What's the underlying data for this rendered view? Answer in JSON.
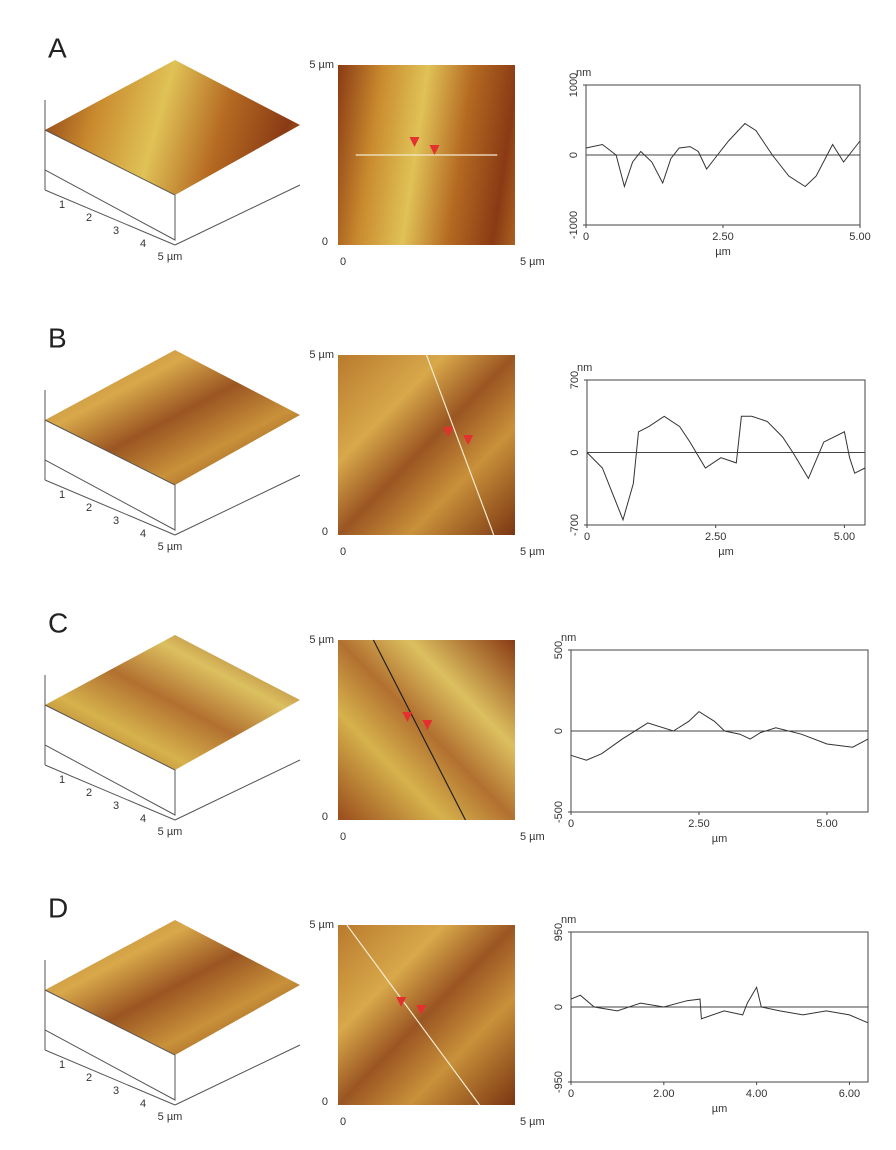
{
  "panels": [
    {
      "label": "A",
      "surface_ticks": [
        "1",
        "2",
        "3",
        "4",
        "5 µm"
      ],
      "image_labels": {
        "y_top": "5 µm",
        "y_bottom": "0",
        "x_left": "0",
        "x_right": "5 µm"
      }
    },
    {
      "label": "B",
      "surface_ticks": [
        "1",
        "2",
        "3",
        "4",
        "5 µm"
      ],
      "image_labels": {
        "y_top": "5 µm",
        "y_bottom": "0",
        "x_left": "0",
        "x_right": "5 µm"
      }
    },
    {
      "label": "C",
      "surface_ticks": [
        "1",
        "2",
        "3",
        "4",
        "5 µm"
      ],
      "image_labels": {
        "y_top": "5 µm",
        "y_bottom": "0",
        "x_left": "0",
        "x_right": "5 µm"
      }
    },
    {
      "label": "D",
      "surface_ticks": [
        "1",
        "2",
        "3",
        "4",
        "5 µm"
      ],
      "image_labels": {
        "y_top": "5 µm",
        "y_bottom": "0",
        "x_left": "0",
        "x_right": "5 µm"
      }
    }
  ],
  "chart_data": [
    {
      "type": "line",
      "y_label": "nm",
      "x_label": "µm",
      "color": "#333",
      "xlim": [
        0,
        5
      ],
      "ylim": [
        -1000,
        1000
      ],
      "xticks": [
        0,
        {
          "value": 2.5,
          "label": "2.50"
        },
        {
          "value": 5,
          "label": "5.00"
        }
      ],
      "yticks": [
        -1000,
        0,
        1000
      ],
      "x": [
        0,
        0.3,
        0.55,
        0.7,
        0.85,
        1.0,
        1.2,
        1.4,
        1.55,
        1.7,
        1.9,
        2.05,
        2.2,
        2.4,
        2.6,
        2.9,
        3.1,
        3.4,
        3.7,
        4.0,
        4.2,
        4.5,
        4.7,
        4.9,
        5.0
      ],
      "values": [
        100,
        150,
        0,
        -450,
        -100,
        50,
        -100,
        -400,
        -50,
        100,
        120,
        50,
        -200,
        0,
        200,
        450,
        350,
        0,
        -300,
        -450,
        -300,
        150,
        -100,
        100,
        200
      ]
    },
    {
      "type": "line",
      "y_label": "nm",
      "x_label": "µm",
      "color": "#333",
      "xlim": [
        0,
        5.4
      ],
      "ylim": [
        -700,
        700
      ],
      "xticks": [
        0,
        {
          "value": 2.5,
          "label": "2.50"
        },
        {
          "value": 5,
          "label": "5.00"
        }
      ],
      "yticks": [
        -700,
        0,
        700
      ],
      "x": [
        0,
        0.3,
        0.5,
        0.7,
        0.9,
        1.0,
        1.2,
        1.5,
        1.8,
        2.0,
        2.3,
        2.6,
        2.9,
        3.0,
        3.2,
        3.5,
        3.8,
        4.0,
        4.3,
        4.6,
        5.0,
        5.1,
        5.2,
        5.4
      ],
      "values": [
        0,
        -150,
        -400,
        -650,
        -300,
        200,
        250,
        350,
        250,
        100,
        -150,
        -50,
        -100,
        350,
        350,
        300,
        150,
        0,
        -250,
        100,
        200,
        -50,
        -200,
        -150
      ]
    },
    {
      "type": "line",
      "y_label": "nm",
      "x_label": "µm",
      "color": "#333",
      "xlim": [
        0,
        5.8
      ],
      "ylim": [
        -500,
        500
      ],
      "xticks": [
        0,
        {
          "value": 2.5,
          "label": "2.50"
        },
        {
          "value": 5,
          "label": "5.00"
        }
      ],
      "yticks": [
        -500,
        0,
        500
      ],
      "x": [
        0,
        0.3,
        0.6,
        1.0,
        1.5,
        2.0,
        2.3,
        2.5,
        2.8,
        3.0,
        3.3,
        3.5,
        3.7,
        4.0,
        4.5,
        5.0,
        5.5,
        5.8
      ],
      "values": [
        -150,
        -180,
        -140,
        -50,
        50,
        0,
        60,
        120,
        60,
        0,
        -20,
        -50,
        -10,
        20,
        -20,
        -80,
        -100,
        -50
      ]
    },
    {
      "type": "line",
      "y_label": "nm",
      "x_label": "µm",
      "color": "#333",
      "xlim": [
        0,
        6.4
      ],
      "ylim": [
        -950,
        950
      ],
      "xticks": [
        0,
        {
          "value": 2,
          "label": "2.00"
        },
        {
          "value": 4,
          "label": "4.00"
        },
        {
          "value": 6,
          "label": "6.00"
        }
      ],
      "yticks": [
        -950,
        0,
        950
      ],
      "x": [
        0,
        0.2,
        0.5,
        1.0,
        1.5,
        2.0,
        2.5,
        2.78,
        2.81,
        3.3,
        3.7,
        3.8,
        4.0,
        4.1,
        4.5,
        5.0,
        5.5,
        6.0,
        6.4
      ],
      "values": [
        100,
        150,
        0,
        -50,
        50,
        0,
        80,
        100,
        -150,
        -50,
        -100,
        50,
        250,
        0,
        -50,
        -100,
        -50,
        -100,
        -200
      ]
    }
  ]
}
